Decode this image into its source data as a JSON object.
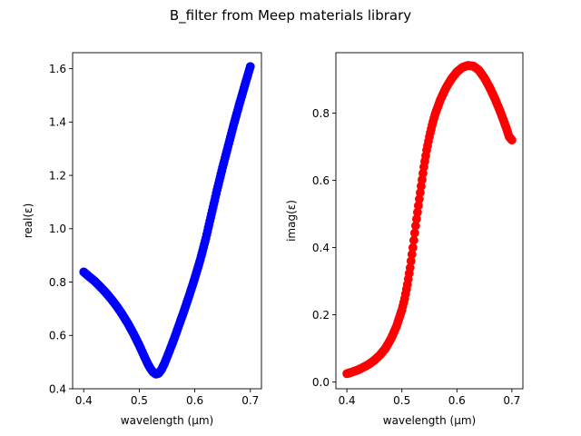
{
  "figure": {
    "suptitle": "B_filter from Meep materials library"
  },
  "chart_data": [
    {
      "type": "scatter",
      "title": "",
      "xlabel": "wavelength (μm)",
      "ylabel": "real(ε)",
      "xlim": [
        0.38,
        0.72
      ],
      "ylim": [
        0.4,
        1.66
      ],
      "xticks": [
        0.4,
        0.5,
        0.6,
        0.7
      ],
      "xtick_labels": [
        "0.4",
        "0.5",
        "0.6",
        "0.7"
      ],
      "yticks": [
        0.4,
        0.6,
        0.8,
        1.0,
        1.2,
        1.4,
        1.6
      ],
      "ytick_labels": [
        "0.4",
        "0.6",
        "0.8",
        "1.0",
        "1.2",
        "1.4",
        "1.6"
      ],
      "grid": false,
      "series": [
        {
          "color": "#0000ff",
          "x": [
            0.4,
            0.41,
            0.42,
            0.43,
            0.44,
            0.45,
            0.46,
            0.47,
            0.48,
            0.49,
            0.5,
            0.505,
            0.51,
            0.515,
            0.52,
            0.525,
            0.53,
            0.535,
            0.54,
            0.545,
            0.55,
            0.555,
            0.56,
            0.565,
            0.57,
            0.58,
            0.59,
            0.6,
            0.61,
            0.62,
            0.63,
            0.64,
            0.65,
            0.66,
            0.67,
            0.68,
            0.69,
            0.7
          ],
          "y": [
            0.838,
            0.82,
            0.803,
            0.782,
            0.76,
            0.735,
            0.708,
            0.677,
            0.643,
            0.605,
            0.563,
            0.54,
            0.517,
            0.495,
            0.476,
            0.462,
            0.455,
            0.458,
            0.472,
            0.493,
            0.519,
            0.545,
            0.572,
            0.6,
            0.63,
            0.688,
            0.75,
            0.815,
            0.885,
            0.965,
            1.055,
            1.145,
            1.23,
            1.31,
            1.39,
            1.465,
            1.538,
            1.608
          ]
        }
      ]
    },
    {
      "type": "scatter",
      "title": "",
      "xlabel": "wavelength (μm)",
      "ylabel": "imag(ε)",
      "xlim": [
        0.38,
        0.72
      ],
      "ylim": [
        -0.02,
        0.98
      ],
      "xticks": [
        0.4,
        0.5,
        0.6,
        0.7
      ],
      "xtick_labels": [
        "0.4",
        "0.5",
        "0.6",
        "0.7"
      ],
      "yticks": [
        0.0,
        0.2,
        0.4,
        0.6,
        0.8
      ],
      "ytick_labels": [
        "0.0",
        "0.2",
        "0.4",
        "0.6",
        "0.8"
      ],
      "grid": false,
      "series": [
        {
          "color": "#ff0000",
          "x": [
            0.4,
            0.41,
            0.42,
            0.43,
            0.44,
            0.45,
            0.46,
            0.47,
            0.48,
            0.49,
            0.5,
            0.505,
            0.51,
            0.515,
            0.52,
            0.525,
            0.53,
            0.535,
            0.54,
            0.545,
            0.55,
            0.555,
            0.56,
            0.57,
            0.58,
            0.59,
            0.6,
            0.61,
            0.62,
            0.63,
            0.64,
            0.65,
            0.66,
            0.67,
            0.68,
            0.69,
            0.695,
            0.7
          ],
          "y": [
            0.025,
            0.03,
            0.036,
            0.044,
            0.053,
            0.065,
            0.08,
            0.1,
            0.128,
            0.165,
            0.215,
            0.248,
            0.29,
            0.34,
            0.4,
            0.465,
            0.525,
            0.583,
            0.64,
            0.69,
            0.73,
            0.765,
            0.795,
            0.84,
            0.875,
            0.902,
            0.923,
            0.936,
            0.942,
            0.94,
            0.928,
            0.905,
            0.875,
            0.84,
            0.8,
            0.755,
            0.73,
            0.72
          ]
        }
      ]
    }
  ]
}
